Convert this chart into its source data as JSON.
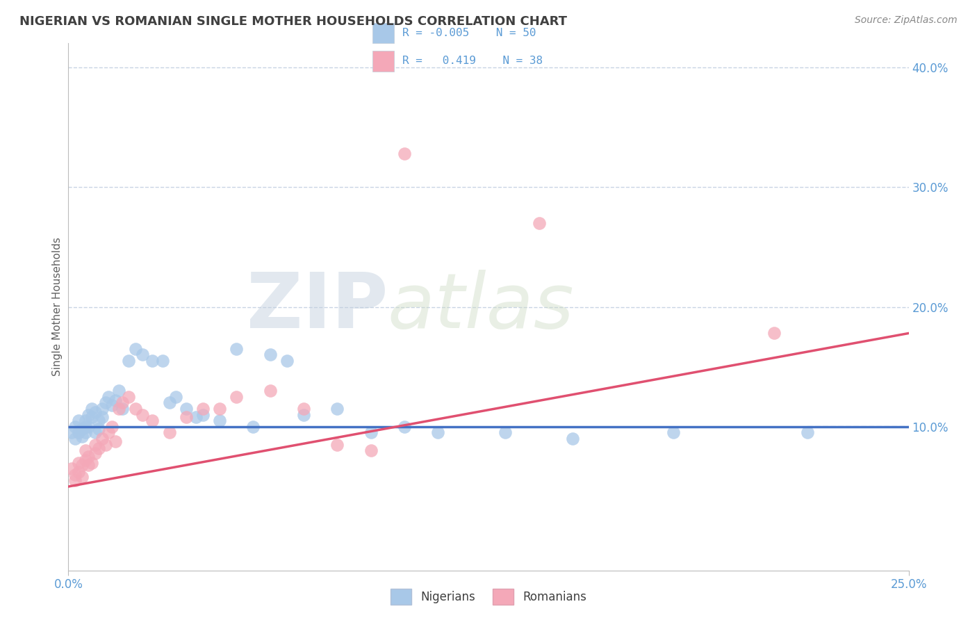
{
  "title": "NIGERIAN VS ROMANIAN SINGLE MOTHER HOUSEHOLDS CORRELATION CHART",
  "source": "Source: ZipAtlas.com",
  "ylabel": "Single Mother Households",
  "xlim": [
    0.0,
    0.25
  ],
  "ylim": [
    -0.02,
    0.42
  ],
  "xticks": [
    0.0,
    0.25
  ],
  "xticklabels": [
    "0.0%",
    "25.0%"
  ],
  "yticks_right": [
    0.1,
    0.2,
    0.3,
    0.4
  ],
  "yticklabels_right": [
    "10.0%",
    "20.0%",
    "30.0%",
    "40.0%"
  ],
  "legend_R_nigerian": "-0.005",
  "legend_N_nigerian": "50",
  "legend_R_romanian": "0.419",
  "legend_N_romanian": "38",
  "nigerian_color": "#a8c8e8",
  "romanian_color": "#f4a8b8",
  "nigerian_line_color": "#4472c4",
  "romanian_line_color": "#e05070",
  "title_color": "#404040",
  "axis_color": "#5b9bd5",
  "grid_color": "#c8d4e4",
  "nigerian_x": [
    0.001,
    0.002,
    0.002,
    0.003,
    0.003,
    0.004,
    0.004,
    0.005,
    0.005,
    0.005,
    0.006,
    0.006,
    0.007,
    0.007,
    0.008,
    0.008,
    0.009,
    0.009,
    0.01,
    0.01,
    0.011,
    0.012,
    0.013,
    0.014,
    0.015,
    0.016,
    0.018,
    0.02,
    0.022,
    0.025,
    0.028,
    0.03,
    0.032,
    0.035,
    0.038,
    0.04,
    0.045,
    0.05,
    0.055,
    0.06,
    0.065,
    0.07,
    0.08,
    0.09,
    0.1,
    0.11,
    0.13,
    0.15,
    0.18,
    0.22
  ],
  "nigerian_y": [
    0.095,
    0.1,
    0.09,
    0.105,
    0.095,
    0.098,
    0.092,
    0.1,
    0.105,
    0.095,
    0.11,
    0.1,
    0.115,
    0.108,
    0.112,
    0.095,
    0.105,
    0.098,
    0.115,
    0.108,
    0.12,
    0.125,
    0.118,
    0.122,
    0.13,
    0.115,
    0.155,
    0.165,
    0.16,
    0.155,
    0.155,
    0.12,
    0.125,
    0.115,
    0.108,
    0.11,
    0.105,
    0.165,
    0.1,
    0.16,
    0.155,
    0.11,
    0.115,
    0.095,
    0.1,
    0.095,
    0.095,
    0.09,
    0.095,
    0.095
  ],
  "romanian_x": [
    0.001,
    0.002,
    0.002,
    0.003,
    0.003,
    0.004,
    0.004,
    0.005,
    0.005,
    0.006,
    0.006,
    0.007,
    0.008,
    0.008,
    0.009,
    0.01,
    0.011,
    0.012,
    0.013,
    0.014,
    0.015,
    0.016,
    0.018,
    0.02,
    0.022,
    0.025,
    0.03,
    0.035,
    0.04,
    0.045,
    0.05,
    0.06,
    0.07,
    0.08,
    0.09,
    0.1,
    0.14,
    0.21
  ],
  "romanian_y": [
    0.065,
    0.06,
    0.055,
    0.07,
    0.062,
    0.068,
    0.058,
    0.072,
    0.08,
    0.068,
    0.075,
    0.07,
    0.085,
    0.078,
    0.082,
    0.09,
    0.085,
    0.095,
    0.1,
    0.088,
    0.115,
    0.12,
    0.125,
    0.115,
    0.11,
    0.105,
    0.095,
    0.108,
    0.115,
    0.115,
    0.125,
    0.13,
    0.115,
    0.085,
    0.08,
    0.328,
    0.27,
    0.178
  ],
  "nig_line_y0": 0.1,
  "nig_line_y1": 0.1,
  "rom_line_y0": 0.05,
  "rom_line_y1": 0.178,
  "watermark_zip": "ZIP",
  "watermark_atlas": "atlas"
}
